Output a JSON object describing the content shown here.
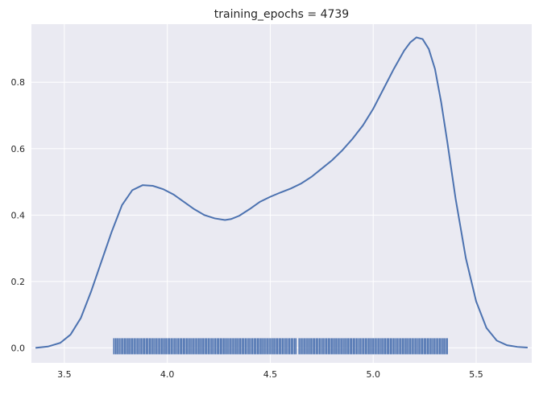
{
  "chart_data": {
    "type": "line",
    "title": "training_epochs = 4739",
    "xlabel": "",
    "ylabel": "",
    "xlim": [
      3.34,
      5.77
    ],
    "ylim": [
      -0.045,
      0.975
    ],
    "xticks": [
      3.5,
      4.0,
      4.5,
      5.0,
      5.5
    ],
    "xtick_labels": [
      "3.5",
      "4.0",
      "4.5",
      "5.0",
      "5.5"
    ],
    "yticks": [
      0.0,
      0.2,
      0.4,
      0.6,
      0.8
    ],
    "ytick_labels": [
      "0.0",
      "0.2",
      "0.4",
      "0.6",
      "0.8"
    ],
    "grid": true,
    "background": "#eaeaf2",
    "grid_color": "#ffffff",
    "series": [
      {
        "color": "#4c72b0",
        "x": [
          3.36,
          3.42,
          3.48,
          3.53,
          3.58,
          3.63,
          3.68,
          3.73,
          3.78,
          3.83,
          3.88,
          3.93,
          3.98,
          4.03,
          4.08,
          4.13,
          4.18,
          4.23,
          4.28,
          4.31,
          4.35,
          4.4,
          4.45,
          4.5,
          4.55,
          4.6,
          4.65,
          4.7,
          4.75,
          4.8,
          4.85,
          4.9,
          4.95,
          5.0,
          5.05,
          5.1,
          5.15,
          5.18,
          5.21,
          5.24,
          5.27,
          5.3,
          5.33,
          5.36,
          5.4,
          5.45,
          5.5,
          5.55,
          5.6,
          5.65,
          5.7,
          5.75
        ],
        "y": [
          0.0,
          0.004,
          0.015,
          0.04,
          0.09,
          0.17,
          0.26,
          0.35,
          0.43,
          0.475,
          0.49,
          0.488,
          0.478,
          0.462,
          0.44,
          0.418,
          0.4,
          0.39,
          0.385,
          0.388,
          0.398,
          0.418,
          0.44,
          0.455,
          0.468,
          0.48,
          0.495,
          0.515,
          0.54,
          0.565,
          0.595,
          0.63,
          0.67,
          0.72,
          0.78,
          0.84,
          0.895,
          0.92,
          0.935,
          0.93,
          0.9,
          0.84,
          0.74,
          0.62,
          0.45,
          0.27,
          0.14,
          0.06,
          0.022,
          0.008,
          0.003,
          0.001
        ]
      }
    ],
    "rug": {
      "color": "#4c72b0",
      "height": 0.042,
      "x": [
        3.74,
        3.748,
        3.755,
        3.762,
        3.77,
        3.778,
        3.785,
        3.793,
        3.8,
        3.808,
        3.815,
        3.823,
        3.83,
        3.838,
        3.845,
        3.853,
        3.86,
        3.868,
        3.875,
        3.883,
        3.89,
        3.898,
        3.905,
        3.913,
        3.92,
        3.928,
        3.935,
        3.943,
        3.95,
        3.958,
        3.965,
        3.973,
        3.98,
        3.988,
        3.995,
        4.003,
        4.01,
        4.018,
        4.025,
        4.033,
        4.04,
        4.048,
        4.055,
        4.063,
        4.07,
        4.078,
        4.085,
        4.093,
        4.1,
        4.108,
        4.115,
        4.123,
        4.13,
        4.138,
        4.145,
        4.153,
        4.16,
        4.168,
        4.175,
        4.183,
        4.19,
        4.198,
        4.205,
        4.213,
        4.22,
        4.228,
        4.235,
        4.243,
        4.25,
        4.258,
        4.265,
        4.273,
        4.28,
        4.288,
        4.295,
        4.303,
        4.31,
        4.318,
        4.325,
        4.333,
        4.34,
        4.348,
        4.355,
        4.363,
        4.37,
        4.378,
        4.385,
        4.393,
        4.4,
        4.408,
        4.415,
        4.423,
        4.43,
        4.438,
        4.445,
        4.453,
        4.46,
        4.468,
        4.475,
        4.483,
        4.49,
        4.498,
        4.505,
        4.513,
        4.52,
        4.528,
        4.535,
        4.543,
        4.55,
        4.558,
        4.565,
        4.573,
        4.58,
        4.588,
        4.595,
        4.603,
        4.61,
        4.618,
        4.625,
        4.64,
        4.648,
        4.655,
        4.663,
        4.67,
        4.678,
        4.685,
        4.693,
        4.7,
        4.708,
        4.715,
        4.723,
        4.73,
        4.738,
        4.745,
        4.753,
        4.76,
        4.768,
        4.775,
        4.783,
        4.79,
        4.798,
        4.805,
        4.813,
        4.82,
        4.828,
        4.835,
        4.843,
        4.85,
        4.858,
        4.865,
        4.873,
        4.88,
        4.888,
        4.895,
        4.903,
        4.91,
        4.918,
        4.925,
        4.933,
        4.94,
        4.948,
        4.955,
        4.963,
        4.97,
        4.978,
        4.985,
        4.993,
        5.0,
        5.008,
        5.015,
        5.023,
        5.03,
        5.038,
        5.045,
        5.053,
        5.06,
        5.068,
        5.075,
        5.083,
        5.09,
        5.098,
        5.105,
        5.113,
        5.12,
        5.128,
        5.135,
        5.143,
        5.15,
        5.158,
        5.165,
        5.173,
        5.18,
        5.188,
        5.195,
        5.203,
        5.21,
        5.218,
        5.225,
        5.233,
        5.24,
        5.248,
        5.255,
        5.263,
        5.27,
        5.278,
        5.285,
        5.293,
        5.3,
        5.308,
        5.315,
        5.323,
        5.33,
        5.338,
        5.345,
        5.353,
        5.36
      ]
    }
  }
}
